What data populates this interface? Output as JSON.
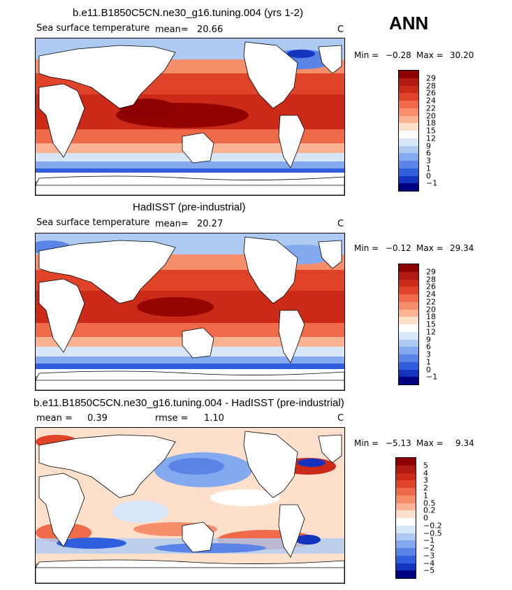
{
  "season": "ANN",
  "panels": [
    {
      "title": "b.e11.B1850C5CN.ne30_g16.tuning.004 (yrs 1-2)",
      "variable": "Sea surface temperature",
      "mean_label": "mean=",
      "mean_value": "20.66",
      "units": "C",
      "min_label": "Min =",
      "min_value": "−0.28",
      "max_label": "Max =",
      "max_value": "30.20",
      "colorbar_labels": [
        "29",
        "28",
        "26",
        "24",
        "22",
        "20",
        "18",
        "15",
        "12",
        "9",
        "6",
        "3",
        "1",
        "0",
        "−1"
      ],
      "colorbar_colors": [
        "#8b0000",
        "#b01a10",
        "#cc2a18",
        "#e04428",
        "#ee6a48",
        "#f68e6c",
        "#fbb394",
        "#fde0cc",
        "#ffffff",
        "#d7e6f8",
        "#aecaf3",
        "#84a9ee",
        "#5a85e6",
        "#2f5fdc",
        "#1433bf",
        "#000080"
      ]
    },
    {
      "title": "HadISST (pre-industrial)",
      "variable": "Sea surface temperature",
      "mean_label": "mean=",
      "mean_value": "20.27",
      "units": "C",
      "min_label": "Min =",
      "min_value": "−0.12",
      "max_label": "Max =",
      "max_value": "29.34",
      "colorbar_labels": [
        "29",
        "28",
        "26",
        "24",
        "22",
        "20",
        "18",
        "15",
        "12",
        "9",
        "6",
        "3",
        "1",
        "0",
        "−1"
      ],
      "colorbar_colors": [
        "#8b0000",
        "#b01a10",
        "#cc2a18",
        "#e04428",
        "#ee6a48",
        "#f68e6c",
        "#fbb394",
        "#fde0cc",
        "#ffffff",
        "#d7e6f8",
        "#aecaf3",
        "#84a9ee",
        "#5a85e6",
        "#2f5fdc",
        "#1433bf",
        "#000080"
      ]
    },
    {
      "title": "b.e11.B1850C5CN.ne30_g16.tuning.004 - HadISST (pre-industrial)",
      "mean_label": "mean =",
      "mean_value": "0.39",
      "rmse_label": "rmse =",
      "rmse_value": "1.10",
      "units": "C",
      "min_label": "Min =",
      "min_value": "−5.13",
      "max_label": "Max =",
      "max_value": "9.34",
      "colorbar_labels": [
        "5",
        "4",
        "3",
        "2",
        "1",
        "0.5",
        "0.2",
        "0",
        "−0.2",
        "−0.5",
        "−1",
        "−2",
        "−3",
        "−4",
        "−5"
      ],
      "colorbar_colors": [
        "#8b0000",
        "#b01a10",
        "#cc2a18",
        "#e04428",
        "#ee6a48",
        "#f68e6c",
        "#fbb394",
        "#fde0cc",
        "#ffffff",
        "#d7e6f8",
        "#aecaf3",
        "#84a9ee",
        "#5a85e6",
        "#2f5fdc",
        "#1433bf",
        "#000080"
      ]
    }
  ]
}
